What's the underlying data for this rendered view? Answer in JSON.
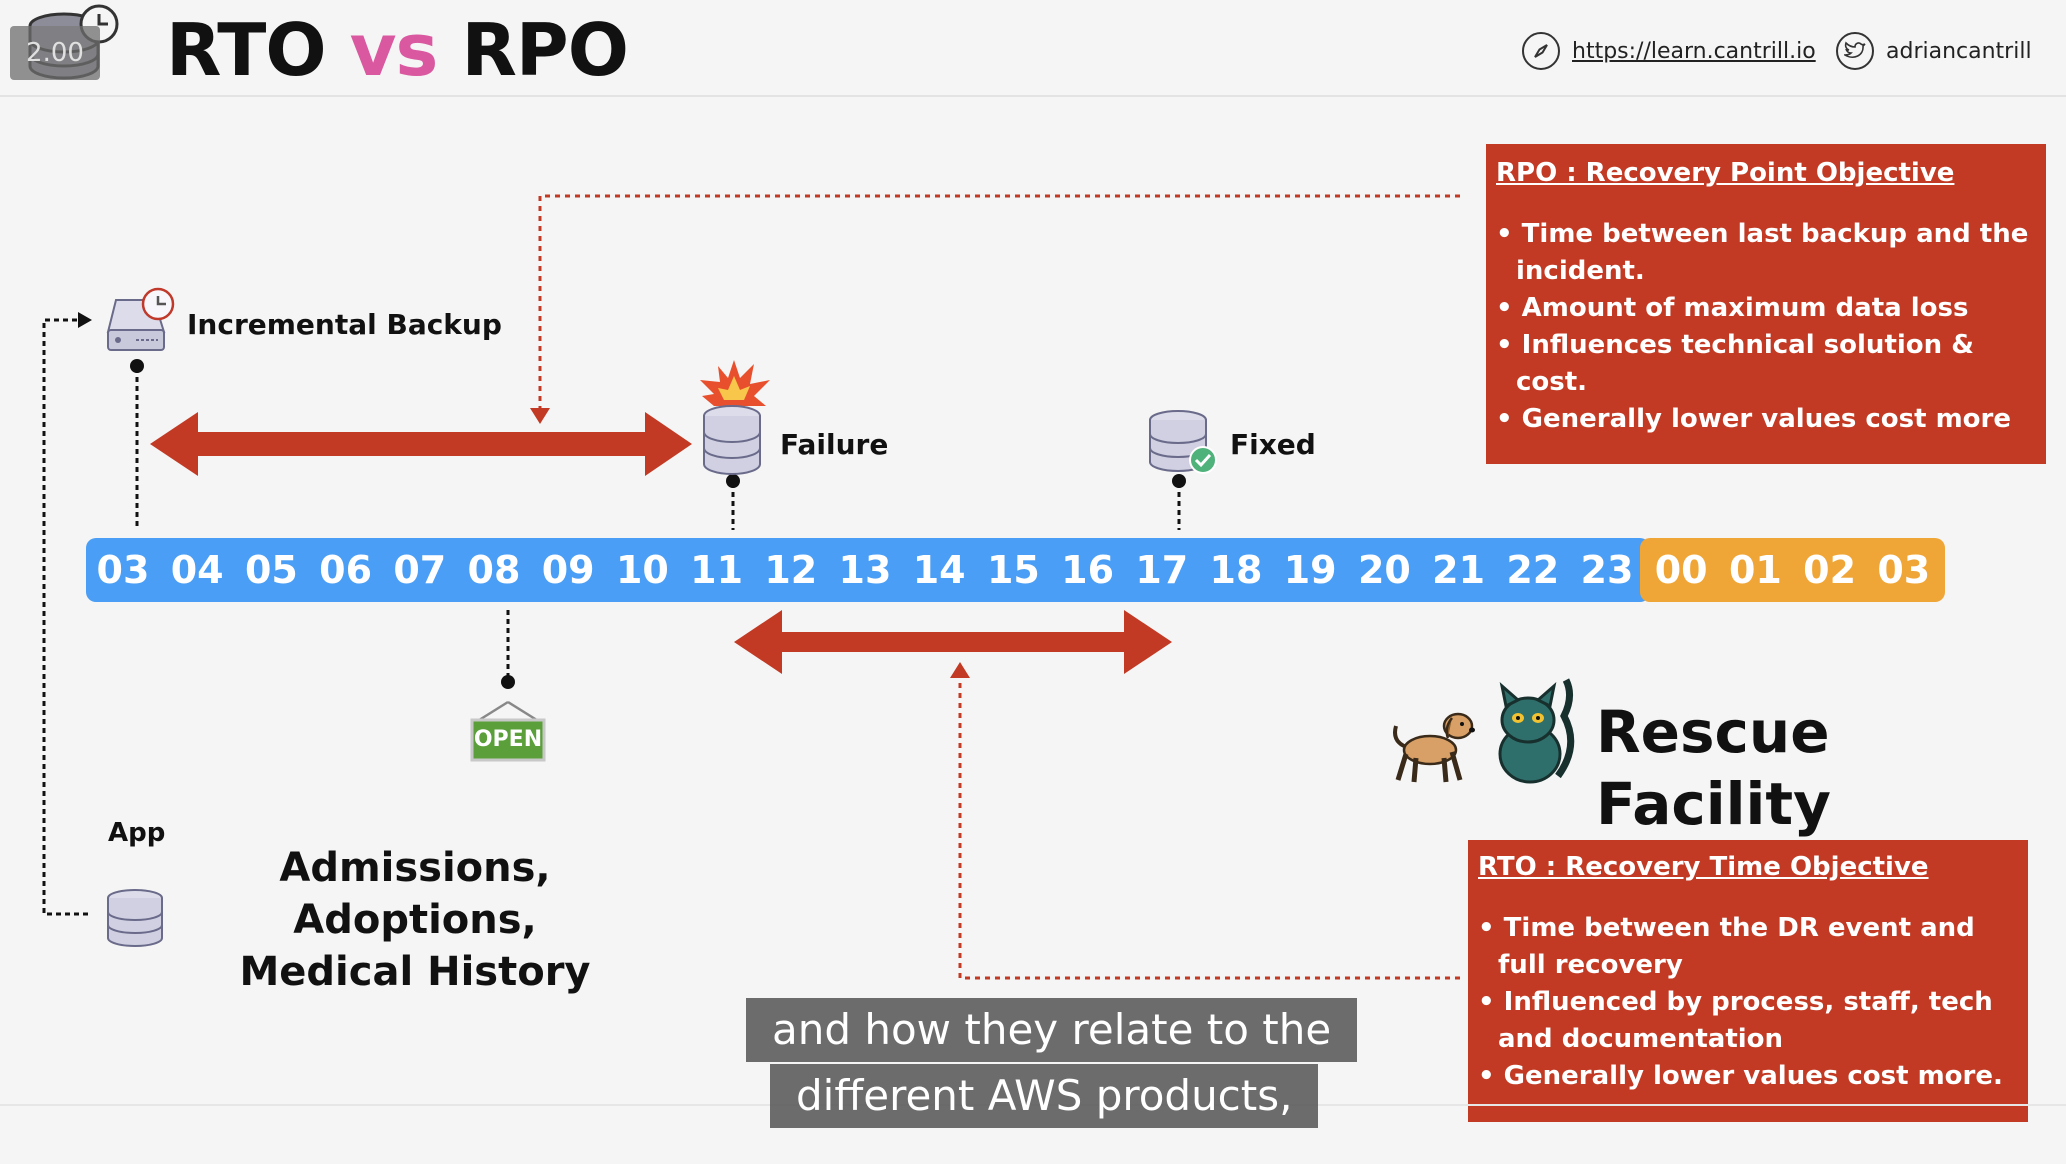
{
  "header": {
    "title_part1": "RTO",
    "title_vs": "vs",
    "title_part2": "RPO",
    "playback_speed": "2.00",
    "website": "https://learn.cantrill.io",
    "twitter": "adriancantrill"
  },
  "timeline": {
    "day1_hours": [
      "03",
      "04",
      "05",
      "06",
      "07",
      "08",
      "09",
      "10",
      "11",
      "12",
      "13",
      "14",
      "15",
      "16",
      "17",
      "18",
      "19",
      "20",
      "21",
      "22",
      "23"
    ],
    "day2_hours": [
      "00",
      "01",
      "02",
      "03"
    ],
    "day1_color": "#4a9ef5",
    "day2_color": "#f0a637"
  },
  "events": {
    "backup_label": "Incremental Backup",
    "failure_label": "Failure",
    "fixed_label": "Fixed",
    "open_sign": "OPEN",
    "app_label": "App",
    "app_description": "Admissions, Adoptions, Medical History",
    "rescue_label": "Rescue Facility"
  },
  "rpo_box": {
    "title": "RPO : Recovery Point Objective",
    "bullets": [
      "Time between last backup and the incident.",
      "Amount of maximum data loss",
      "Influences technical solution & cost.",
      "Generally lower values cost more"
    ]
  },
  "rto_box": {
    "title": "RTO : Recovery Time Objective",
    "bullets": [
      "Time between the DR event and full recovery",
      "Influenced by process, staff, tech and documentation",
      "Generally lower values cost more."
    ]
  },
  "subtitles": {
    "line1": "and how they relate to the",
    "line2": "different AWS products,"
  },
  "colors": {
    "accent_red": "#c23a24",
    "vs_pink": "#d9589f"
  }
}
